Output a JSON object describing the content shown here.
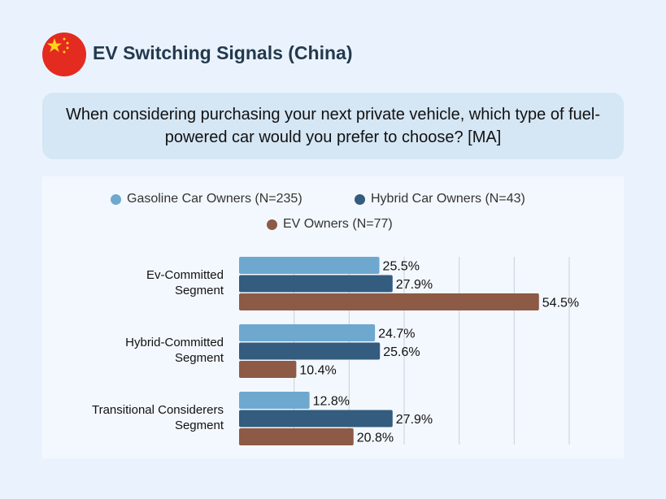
{
  "header": {
    "title": "EV Switching Signals (China)",
    "flag_icon": "china-flag-icon"
  },
  "question": "When considering purchasing your next private vehicle, which type of fuel-powered car would you prefer to choose? [MA]",
  "chart_data": {
    "type": "bar",
    "orientation": "horizontal",
    "categories": [
      "Ev-Committed Segment",
      "Hybrid-Committed Segment",
      "Transitional Considerers Segment"
    ],
    "series": [
      {
        "name": "Gasoline Car Owners (N=235)",
        "color": "#6ea8cf",
        "values": [
          25.5,
          24.7,
          12.8
        ],
        "labels": [
          "25.5%",
          "24.7%",
          "12.8%"
        ]
      },
      {
        "name": "Hybrid Car Owners (N=43)",
        "color": "#335c7e",
        "values": [
          27.9,
          25.6,
          27.9
        ],
        "labels": [
          "27.9%",
          "25.6%",
          "27.9%"
        ]
      },
      {
        "name": "EV Owners (N=77)",
        "color": "#8c5a45",
        "values": [
          54.5,
          10.4,
          20.8
        ],
        "labels": [
          "54.5%",
          "10.4%",
          "20.8%"
        ]
      }
    ],
    "xlim": [
      0,
      60
    ],
    "grid": true,
    "legend_position": "top"
  }
}
